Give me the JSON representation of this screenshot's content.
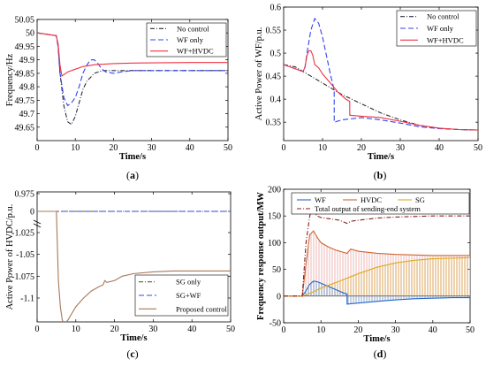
{
  "chart_data": [
    {
      "type": "line",
      "panel_label": "a",
      "xlabel": "Time/s",
      "ylabel": "Frequency/Hz",
      "xlim": [
        0,
        50
      ],
      "ylim": [
        49.6,
        50.05
      ],
      "xticks": [
        "0",
        "10",
        "20",
        "30",
        "40",
        "50"
      ],
      "yticks": [
        "49.65",
        "49.7",
        "49.75",
        "49.8",
        "49.85",
        "49.9",
        "49.95",
        "50",
        "50.05"
      ],
      "legend_position": "top-right",
      "series": [
        {
          "name": "No control",
          "color": "#2c2c3c",
          "dash": "5 2 1 2",
          "x": [
            0,
            5,
            5.5,
            6,
            7,
            8,
            9,
            10,
            11,
            12,
            13,
            15,
            17,
            20,
            25,
            30,
            40,
            50
          ],
          "y": [
            50,
            49.99,
            49.95,
            49.85,
            49.73,
            49.67,
            49.66,
            49.69,
            49.74,
            49.79,
            49.82,
            49.85,
            49.86,
            49.86,
            49.86,
            49.86,
            49.86,
            49.86
          ]
        },
        {
          "name": "WF only",
          "color": "#3344ee",
          "dash": "6 3",
          "x": [
            0,
            5,
            5.5,
            6,
            7,
            8,
            9,
            10,
            11,
            12,
            13,
            14,
            15,
            16,
            17,
            18,
            20,
            22,
            25,
            30,
            40,
            50
          ],
          "y": [
            50,
            49.99,
            49.95,
            49.85,
            49.76,
            49.73,
            49.74,
            49.76,
            49.8,
            49.85,
            49.88,
            49.9,
            49.9,
            49.885,
            49.865,
            49.855,
            49.85,
            49.855,
            49.86,
            49.86,
            49.86,
            49.86
          ]
        },
        {
          "name": "WF+HVDC",
          "color": "#ee3344",
          "dash": "",
          "x": [
            0,
            5,
            5.5,
            6,
            6.5,
            7,
            8,
            10,
            12,
            15,
            20,
            25,
            30,
            40,
            50
          ],
          "y": [
            50,
            49.99,
            49.96,
            49.88,
            49.84,
            49.845,
            49.855,
            49.865,
            49.875,
            49.882,
            49.886,
            49.888,
            49.889,
            49.89,
            49.89
          ]
        }
      ]
    },
    {
      "type": "line",
      "panel_label": "b",
      "xlabel": "Time/s",
      "ylabel": "Active Power of WF/p.u.",
      "xlim": [
        0,
        50
      ],
      "ylim": [
        0.31,
        0.6
      ],
      "xticks": [
        "0",
        "10",
        "20",
        "30",
        "40",
        "50"
      ],
      "yticks": [
        "0.35",
        "0.4",
        "0.45",
        "0.5",
        "0.55",
        "0.6"
      ],
      "legend_position": "top-right",
      "series": [
        {
          "name": "No control",
          "color": "#2c2c3c",
          "dash": "5 2 1 2",
          "x": [
            0,
            3,
            5,
            8,
            10,
            15,
            20,
            25,
            30,
            35,
            40,
            45,
            50
          ],
          "y": [
            0.475,
            0.47,
            0.46,
            0.445,
            0.435,
            0.41,
            0.39,
            0.37,
            0.355,
            0.343,
            0.337,
            0.334,
            0.333
          ]
        },
        {
          "name": "WF only",
          "color": "#3344ee",
          "dash": "6 3",
          "x": [
            0,
            5,
            5.5,
            6,
            7,
            8,
            9,
            10,
            11,
            12,
            13,
            13.01,
            15,
            20,
            25,
            30,
            35,
            40,
            45,
            50
          ],
          "y": [
            0.475,
            0.46,
            0.47,
            0.5,
            0.55,
            0.575,
            0.565,
            0.535,
            0.495,
            0.455,
            0.42,
            0.35,
            0.355,
            0.36,
            0.355,
            0.348,
            0.34,
            0.336,
            0.334,
            0.333
          ]
        },
        {
          "name": "WF+HVDC",
          "color": "#ee3344",
          "dash": "",
          "x": [
            0,
            5,
            5.5,
            6,
            6.5,
            7,
            7.5,
            8,
            9,
            10,
            12,
            14,
            16,
            17,
            17.01,
            20,
            25,
            30,
            35,
            40,
            45,
            50
          ],
          "y": [
            0.475,
            0.46,
            0.47,
            0.495,
            0.505,
            0.505,
            0.495,
            0.475,
            0.468,
            0.455,
            0.435,
            0.415,
            0.4,
            0.395,
            0.365,
            0.363,
            0.36,
            0.352,
            0.343,
            0.337,
            0.334,
            0.333
          ]
        }
      ]
    },
    {
      "type": "line",
      "panel_label": "c",
      "xlabel": "Time/s",
      "ylabel": "Active Power of HVDC/p.u.",
      "xlim": [
        0,
        50
      ],
      "ylim": [
        -1.135,
        0.975
      ],
      "y_axis_break": true,
      "xticks": [
        "0",
        "10",
        "20",
        "30",
        "40",
        "50"
      ],
      "yticks": [
        "0.975",
        "0",
        "-1.025",
        "-1.05",
        "-1.075",
        "-1.1"
      ],
      "legend_position": "bottom-right",
      "series": [
        {
          "name": "SG only",
          "color": "#556633",
          "dash": "5 2 1 2",
          "x": [
            0,
            50
          ],
          "y": [
            0,
            0
          ]
        },
        {
          "name": "SG+WF",
          "color": "#3344ee",
          "dash": "6 3",
          "x": [
            0,
            50
          ],
          "y": [
            0,
            0
          ]
        },
        {
          "name": "Proposed control",
          "color": "#aa7755",
          "dash": "",
          "x": [
            0,
            5,
            5.01,
            5.5,
            6,
            6.5,
            7,
            8,
            10,
            12,
            14,
            16,
            17,
            17.5,
            18,
            20,
            22,
            25,
            30,
            35,
            40,
            45,
            50
          ],
          "y": [
            0,
            0,
            -1.005,
            -1.08,
            -1.11,
            -1.125,
            -1.13,
            -1.125,
            -1.11,
            -1.1,
            -1.092,
            -1.087,
            -1.085,
            -1.08,
            -1.082,
            -1.08,
            -1.075,
            -1.072,
            -1.07,
            -1.069,
            -1.069,
            -1.069,
            -1.069
          ]
        }
      ]
    },
    {
      "type": "area",
      "panel_label": "d",
      "xlabel": "Time/s",
      "ylabel": "Frequency response output/MW",
      "xlim": [
        0,
        50
      ],
      "ylim": [
        -50,
        200
      ],
      "xticks": [
        "0",
        "10",
        "20",
        "30",
        "40",
        "50"
      ],
      "yticks": [
        "-50",
        "0",
        "50",
        "100",
        "150",
        "200"
      ],
      "legend_position": "top",
      "series": [
        {
          "name": "WF",
          "color": "#2266cc",
          "dash": "",
          "x": [
            0,
            5,
            6,
            7,
            8,
            9,
            10,
            12,
            14,
            16,
            17,
            17.01,
            20,
            25,
            30,
            35,
            40,
            45,
            50
          ],
          "y": [
            0,
            0,
            10,
            22,
            28,
            27,
            24,
            18,
            12,
            6,
            4,
            -15,
            -13,
            -10,
            -7,
            -5,
            -4,
            -3,
            -3
          ]
        },
        {
          "name": "HVDC",
          "color": "#cc6633",
          "dash": "",
          "x": [
            0,
            5,
            6,
            7,
            8,
            9,
            10,
            12,
            14,
            16,
            17,
            18,
            20,
            25,
            30,
            35,
            40,
            45,
            50
          ],
          "y": [
            0,
            0,
            60,
            115,
            122,
            110,
            100,
            92,
            86,
            82,
            80,
            88,
            84,
            80,
            78,
            77,
            76,
            76,
            76
          ]
        },
        {
          "name": "SG",
          "color": "#ddaa22",
          "dash": "",
          "x": [
            0,
            5,
            6,
            8,
            10,
            15,
            20,
            25,
            30,
            35,
            40,
            45,
            50
          ],
          "y": [
            0,
            0,
            2,
            8,
            15,
            28,
            42,
            54,
            62,
            67,
            70,
            71,
            72
          ]
        },
        {
          "name": "Total output of sending-end system",
          "color": "#8b1e1e",
          "dash": "5 2 1 2",
          "x": [
            0,
            5,
            6,
            7,
            7.5,
            8,
            9,
            10,
            12,
            15,
            17,
            18,
            20,
            25,
            30,
            35,
            40,
            45,
            50
          ],
          "y": [
            0,
            0,
            100,
            150,
            162,
            158,
            150,
            147,
            145,
            142,
            136,
            140,
            142,
            146,
            148,
            149,
            150,
            150,
            150
          ]
        }
      ]
    }
  ]
}
